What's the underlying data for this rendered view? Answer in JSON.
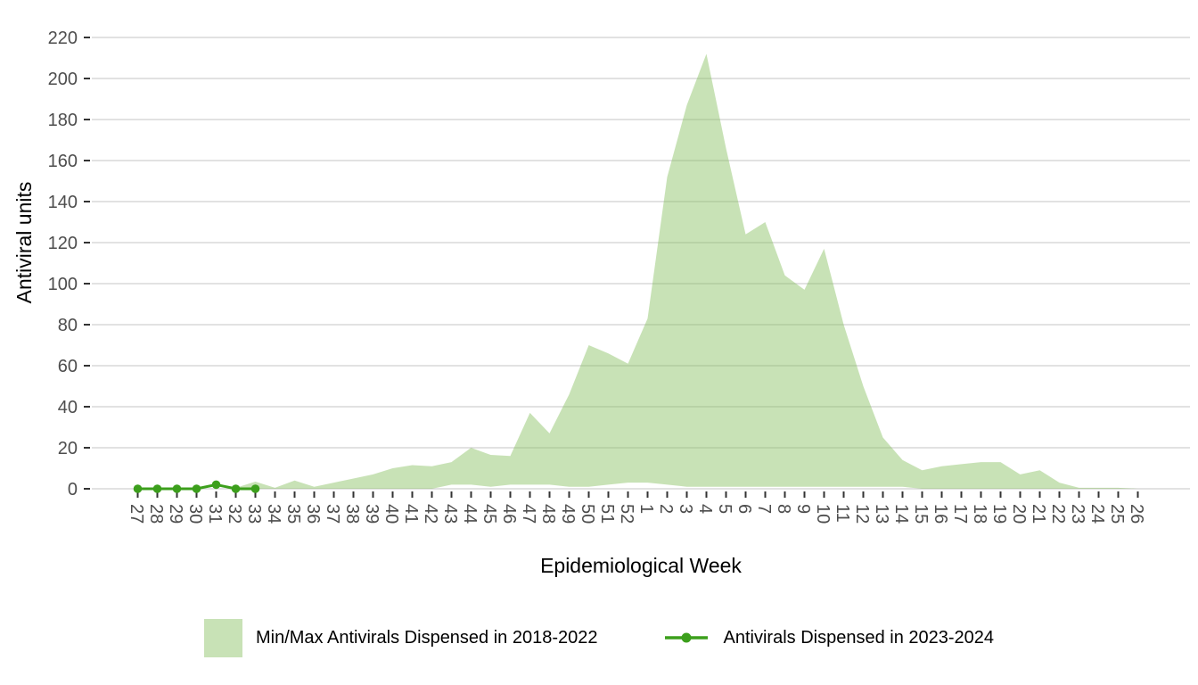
{
  "chart_data": {
    "type": "area",
    "title": "",
    "xlabel": "Epidemiological Week",
    "ylabel": "Antiviral units",
    "x_categories": [
      "27",
      "28",
      "29",
      "30",
      "31",
      "32",
      "33",
      "34",
      "35",
      "36",
      "37",
      "38",
      "39",
      "40",
      "41",
      "42",
      "43",
      "44",
      "45",
      "46",
      "47",
      "48",
      "49",
      "50",
      "51",
      "52",
      "1",
      "2",
      "3",
      "4",
      "5",
      "6",
      "7",
      "8",
      "9",
      "10",
      "11",
      "12",
      "13",
      "14",
      "15",
      "16",
      "17",
      "18",
      "19",
      "20",
      "21",
      "22",
      "23",
      "24",
      "25",
      "26"
    ],
    "yticks": [
      0,
      20,
      40,
      60,
      80,
      100,
      120,
      140,
      160,
      180,
      200,
      220
    ],
    "ylim": [
      0,
      220
    ],
    "grid": "horizontal-major-only",
    "legend_position": "bottom-center",
    "colors": {
      "ribbon_base": "#7cb950",
      "ribbon_fill_opacity": 0.42,
      "ribbon_legend_swatch": "#c8e2b6",
      "line_green": "#3c9f1c",
      "gridline": "#d9d9d9",
      "tick_mark": "#333333",
      "tick_label": "#4d4d4d",
      "background": "#ffffff"
    },
    "series": [
      {
        "name": "Min/Max Antivirals Dispensed in 2018-2022",
        "kind": "ribbon",
        "max": [
          0,
          0,
          0,
          0,
          0,
          0.5,
          3.5,
          0.5,
          4,
          1,
          3,
          5,
          7,
          10,
          11.5,
          11,
          13,
          20,
          16.5,
          16,
          37,
          27,
          46,
          70,
          66,
          61,
          83,
          152,
          187,
          212,
          166,
          124,
          130,
          104,
          97,
          117,
          80,
          50,
          25,
          14,
          9,
          11,
          12,
          13,
          13,
          7,
          9,
          3,
          0.5,
          0.5,
          0.5,
          0
        ],
        "min": [
          0,
          0,
          0,
          0,
          0,
          0,
          0,
          0,
          0,
          0,
          0,
          0,
          0,
          0,
          0,
          0,
          2,
          2,
          1,
          2,
          2,
          2,
          1,
          1,
          2,
          3,
          3,
          2,
          1,
          1,
          1,
          1,
          1,
          1,
          1,
          1,
          1,
          1,
          1,
          1,
          0,
          0,
          0,
          0,
          0,
          0,
          0,
          0,
          0,
          0,
          0,
          0
        ]
      },
      {
        "name": "Antivirals Dispensed in 2023-2024",
        "kind": "line-with-points",
        "weeks": [
          "27",
          "28",
          "29",
          "30",
          "31",
          "32",
          "33"
        ],
        "values": [
          0,
          0,
          0,
          0,
          2,
          0,
          0
        ]
      }
    ]
  }
}
